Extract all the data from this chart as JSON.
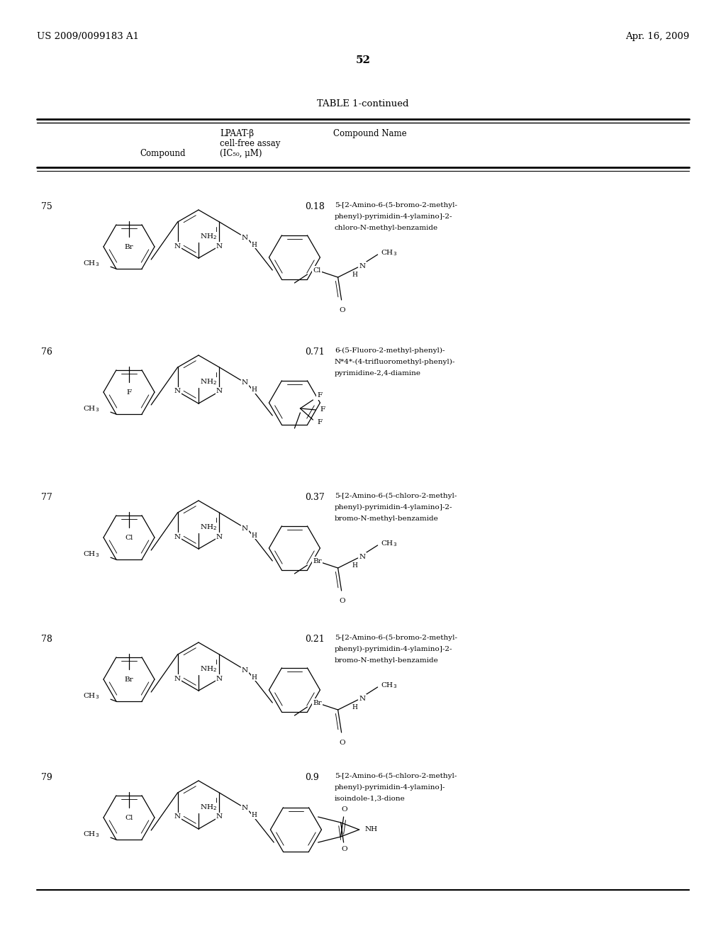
{
  "page_number": "52",
  "patent_left": "US 2009/0099183 A1",
  "patent_right": "Apr. 16, 2009",
  "table_title": "TABLE 1-continued",
  "col_header_compound": "Compound",
  "col_header_assay_line1": "LPAAT-β",
  "col_header_assay_line2": "cell-free assay",
  "col_header_assay_line3": "(IC₅₀, μM)",
  "col_header_name": "Compound Name",
  "background_color": "#ffffff",
  "text_color": "#000000",
  "rows": [
    {
      "num": "75",
      "ic50": "0.18",
      "name_lines": [
        "5-[2-Amino-6-(5-bromo-2-methyl-",
        "phenyl)-pyrimidin-4-ylamino]-2-",
        "chloro-N-methyl-benzamide"
      ]
    },
    {
      "num": "76",
      "ic50": "0.71",
      "name_lines": [
        "6-(5-Fluoro-2-methyl-phenyl)-",
        "N*4*-(4-trifluoromethyl-phenyl)-",
        "pyrimidine-2,4-diamine"
      ]
    },
    {
      "num": "77",
      "ic50": "0.37",
      "name_lines": [
        "5-[2-Amino-6-(5-chloro-2-methyl-",
        "phenyl)-pyrimidin-4-ylamino]-2-",
        "bromo-N-methyl-benzamide"
      ]
    },
    {
      "num": "78",
      "ic50": "0.21",
      "name_lines": [
        "5-[2-Amino-6-(5-bromo-2-methyl-",
        "phenyl)-pyrimidin-4-ylamino]-2-",
        "bromo-N-methyl-benzamide"
      ]
    },
    {
      "num": "79",
      "ic50": "0.9",
      "name_lines": [
        "5-[2-Amino-6-(5-chloro-2-methyl-",
        "phenyl)-pyrimidin-4-ylamino]-",
        "isoindole-1,3-dione"
      ]
    }
  ]
}
